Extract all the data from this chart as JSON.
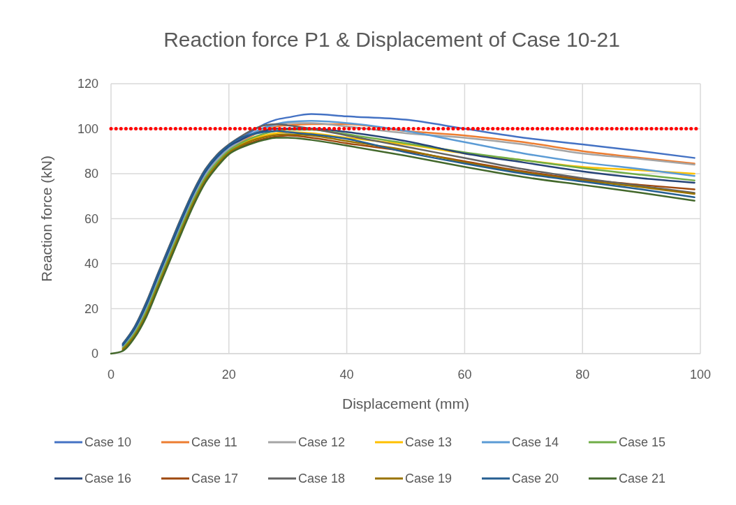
{
  "chart_data": {
    "type": "line",
    "title": "Reaction force P1 & Displacement of Case 10-21",
    "xlabel": "Displacement (mm)",
    "ylabel": "Reaction force (kN)",
    "x": [
      0,
      2,
      4,
      6,
      8,
      10,
      12,
      14,
      16,
      18,
      20,
      22,
      24,
      26,
      28,
      30,
      34,
      40,
      50,
      60,
      70,
      80,
      90,
      99
    ],
    "series": [
      {
        "name": "Case 10",
        "color": "#4472c4",
        "values": [
          null,
          3.3,
          10.2,
          20.6,
          33.4,
          45.9,
          58.4,
          70.1,
          79.8,
          86.5,
          91.4,
          95.5,
          99,
          102,
          104,
          105,
          106.5,
          105.5,
          104,
          100,
          96,
          93,
          90,
          87
        ]
      },
      {
        "name": "Case 11",
        "color": "#ed7d31",
        "values": [
          null,
          2.7,
          9.3,
          19.4,
          32.1,
          44.6,
          57.1,
          68.9,
          78.7,
          85.5,
          90.6,
          94,
          97,
          99.5,
          101,
          101.5,
          102,
          102,
          99,
          97,
          94,
          90,
          87,
          84.5
        ]
      },
      {
        "name": "Case 12",
        "color": "#a5a5a5",
        "values": [
          null,
          3,
          9.8,
          20,
          32.8,
          45.3,
          57.8,
          69.5,
          79.3,
          86,
          91,
          94.5,
          97.5,
          100,
          101.5,
          102.5,
          102.5,
          101,
          98,
          96,
          93,
          89,
          86.5,
          84
        ]
      },
      {
        "name": "Case 13",
        "color": "#ffc000",
        "values": [
          null,
          2.1,
          8.4,
          18.2,
          30.8,
          43.3,
          55.8,
          67.7,
          77.6,
          84.5,
          89.8,
          93,
          95.5,
          97,
          98,
          98.5,
          98,
          96,
          93,
          89,
          86,
          83,
          81.5,
          80
        ]
      },
      {
        "name": "Case 14",
        "color": "#5b9bd5",
        "values": [
          null,
          3.6,
          10.7,
          21.2,
          34,
          46.5,
          59,
          70.7,
          80.4,
          87,
          91.8,
          95,
          98,
          100.5,
          102,
          103,
          103.5,
          102.5,
          99,
          94,
          89,
          85,
          82,
          79
        ]
      },
      {
        "name": "Case 15",
        "color": "#70ad47",
        "values": [
          null,
          2.4,
          8.9,
          18.8,
          31.5,
          44,
          56.5,
          68.3,
          78.2,
          85,
          90.2,
          93.5,
          96,
          97.8,
          99,
          99.5,
          99.5,
          97.5,
          93.5,
          89.5,
          86,
          82.5,
          79.5,
          77
        ]
      },
      {
        "name": "Case 16",
        "color": "#264478",
        "values": [
          null,
          3.9,
          11.1,
          21.8,
          34.7,
          47.2,
          59.7,
          71.3,
          80.9,
          87.5,
          92.2,
          95,
          97.5,
          99,
          100,
          100,
          100,
          98.5,
          94.5,
          89,
          85,
          81,
          78,
          76
        ]
      },
      {
        "name": "Case 17",
        "color": "#9e480e",
        "values": [
          null,
          1.5,
          7.5,
          17,
          29.5,
          42,
          54.5,
          66.5,
          76.5,
          83.5,
          89,
          92,
          94,
          95.5,
          96.5,
          97,
          96,
          93.5,
          90,
          85.5,
          81,
          77.5,
          75,
          73
        ]
      },
      {
        "name": "Case 18",
        "color": "#636363",
        "values": [
          null,
          4.5,
          12,
          23,
          36,
          48.5,
          61,
          72.5,
          82,
          88.5,
          93,
          96.5,
          99.5,
          101.5,
          102,
          101.5,
          100,
          97,
          92,
          87,
          82,
          78,
          74.5,
          71.5
        ]
      },
      {
        "name": "Case 19",
        "color": "#997300",
        "values": [
          null,
          1.8,
          8,
          17.6,
          30.2,
          42.7,
          55.2,
          67.1,
          77.1,
          84,
          89.4,
          92.5,
          94.8,
          96.3,
          97.2,
          97.5,
          97,
          94.5,
          90.5,
          85,
          80.5,
          77,
          74,
          71
        ]
      },
      {
        "name": "Case 20",
        "color": "#255e91",
        "values": [
          null,
          4.2,
          11.6,
          22.4,
          35.4,
          47.9,
          60.4,
          71.9,
          81.5,
          88,
          92.6,
          96,
          97.5,
          98.5,
          99,
          98.5,
          97.5,
          95.5,
          89.5,
          84.5,
          80,
          76.5,
          73,
          69.5
        ]
      },
      {
        "name": "Case 21",
        "color": "#43682b",
        "values": [
          0,
          1.2,
          7.1,
          16.4,
          28.9,
          41.4,
          53.9,
          65.9,
          76,
          83,
          88.6,
          91.5,
          93.5,
          95,
          96,
          96,
          95,
          92.5,
          88,
          83,
          78.5,
          75,
          71.5,
          68
        ]
      }
    ],
    "ref_lines": [
      {
        "axis": "y",
        "value": 100,
        "color": "#ff0000",
        "line_style": "dotted"
      }
    ],
    "xlim": [
      0,
      100
    ],
    "xticks": [
      0,
      20,
      40,
      60,
      80,
      100
    ],
    "ylim": [
      0,
      120
    ],
    "yticks": [
      0,
      20,
      40,
      60,
      80,
      100,
      120
    ],
    "grid": true,
    "legend": "bottom",
    "marker": "none",
    "line_style": "solid"
  }
}
